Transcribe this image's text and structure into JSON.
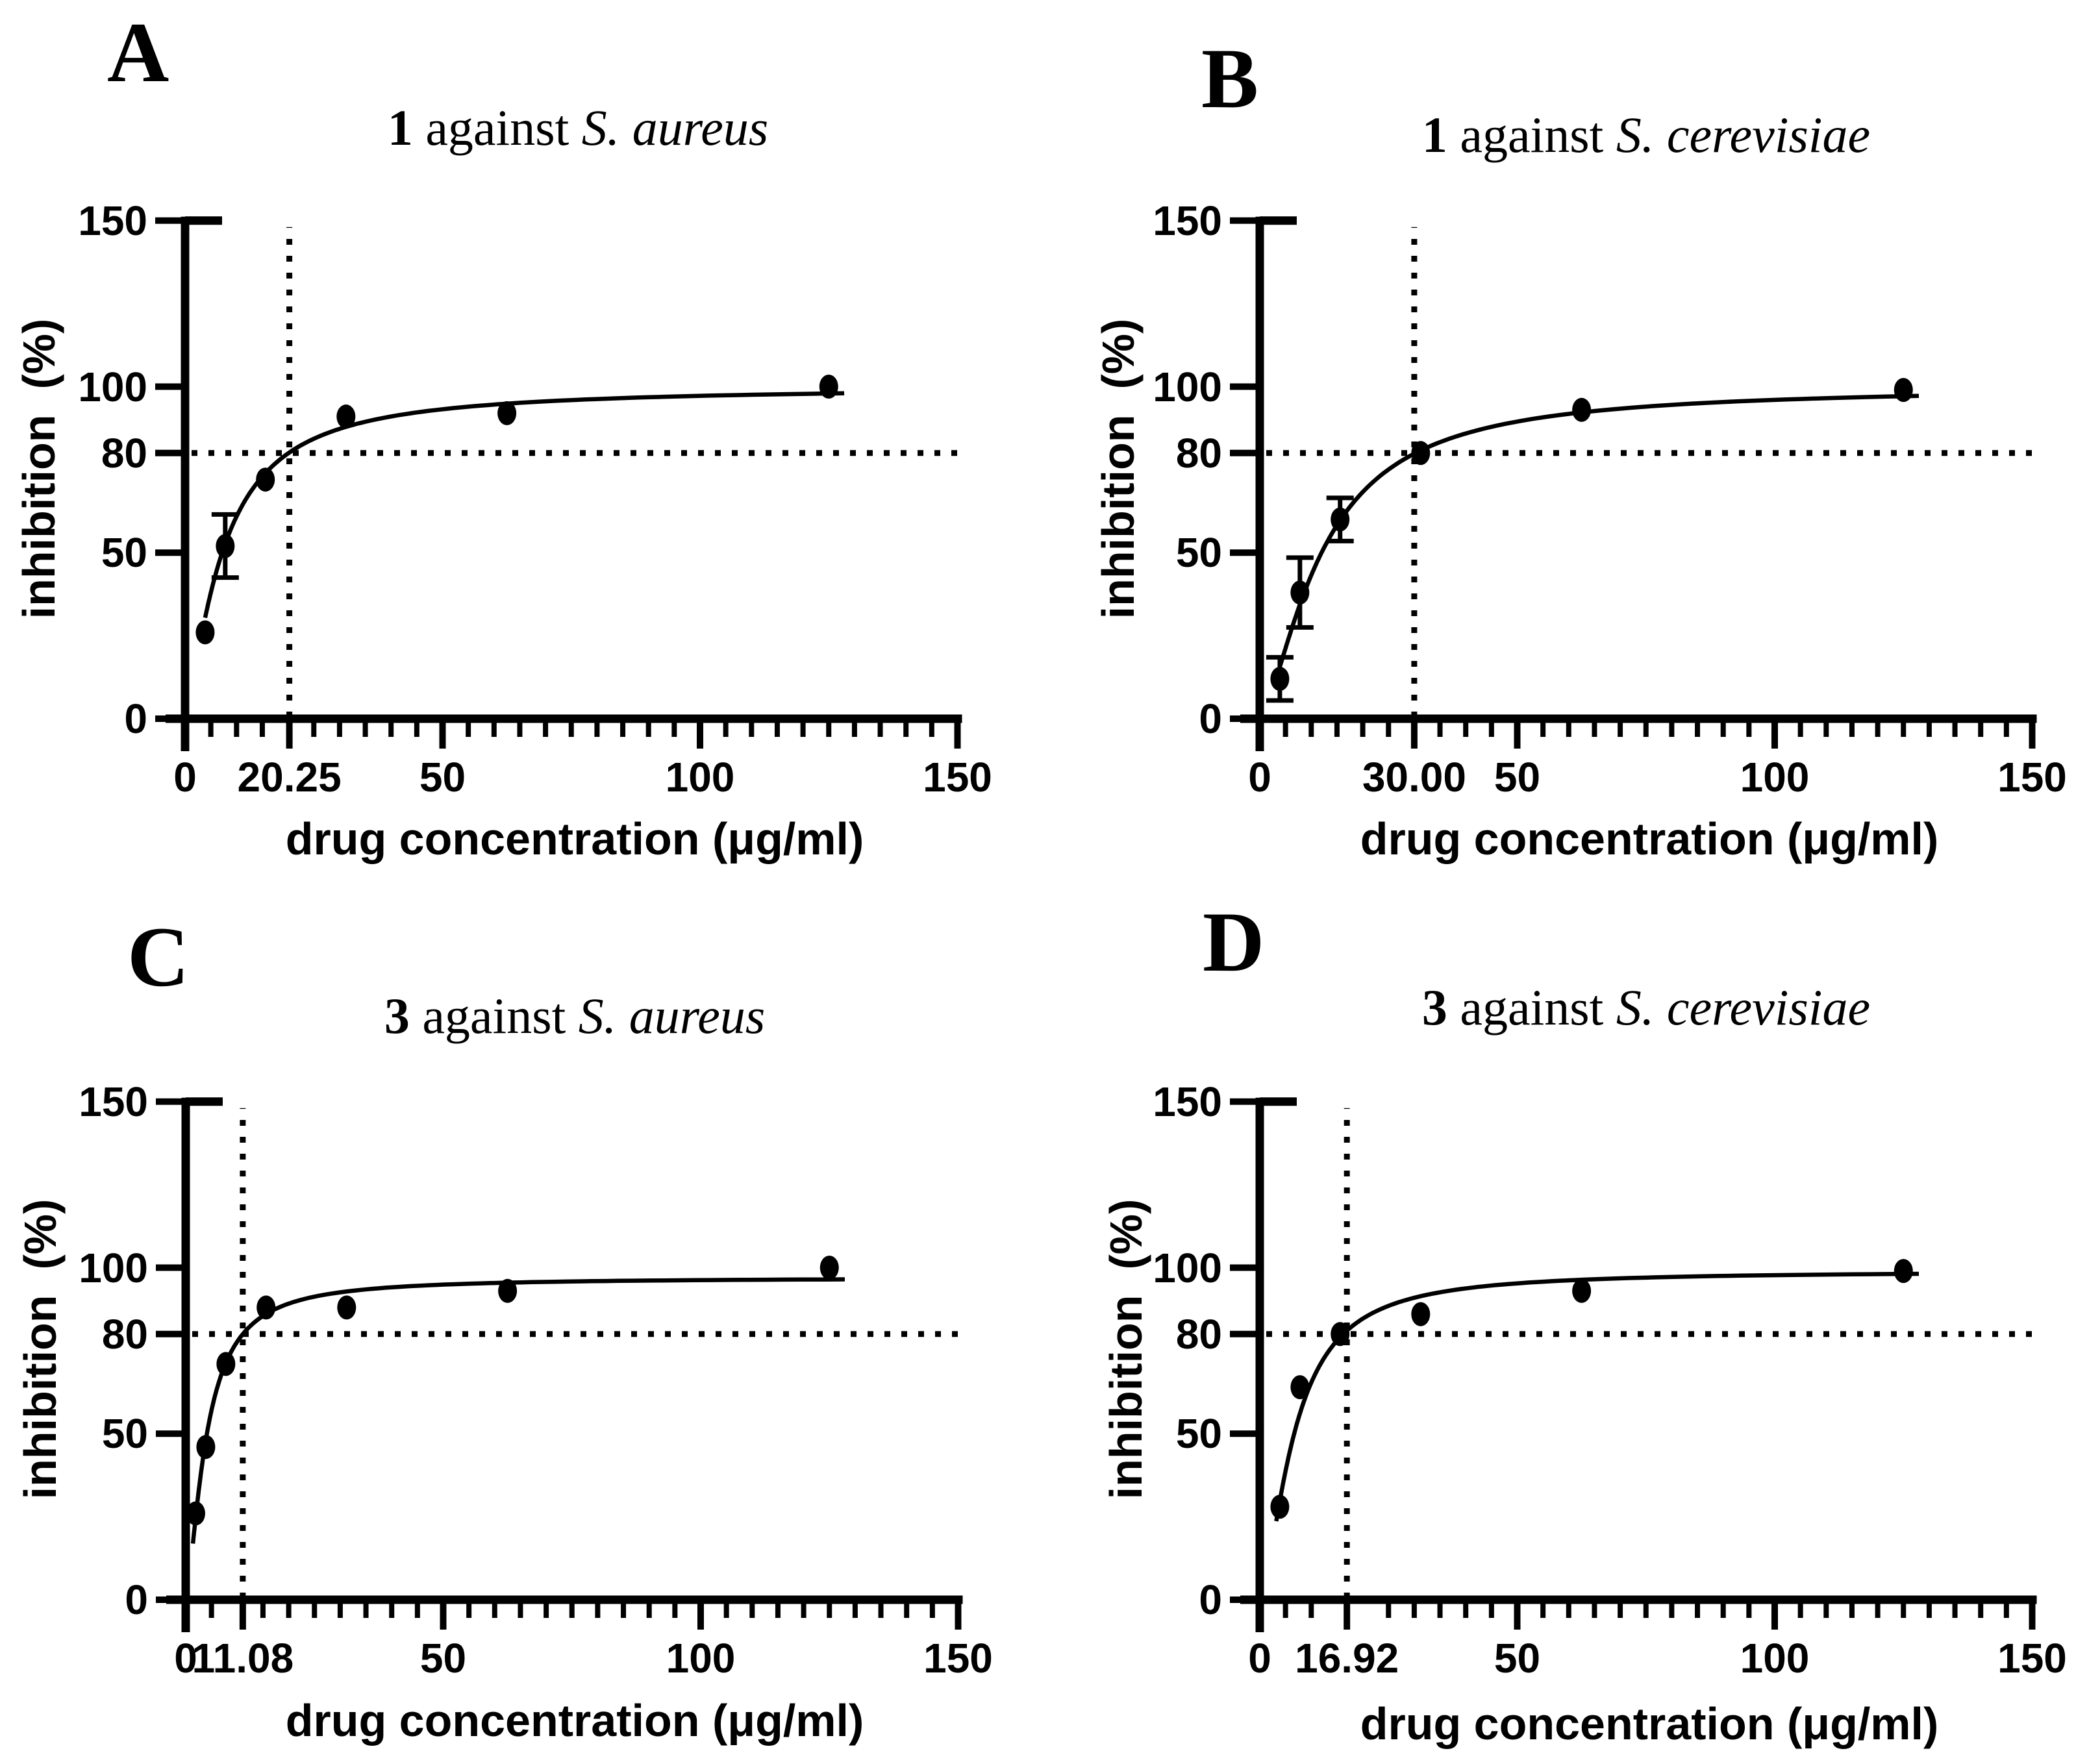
{
  "figure": {
    "background_color": "#ffffff",
    "ink_color": "#000000",
    "description_text": "dose-response inhibition curves"
  },
  "chart_data": [
    {
      "type": "scatter",
      "panel_letter": "A",
      "title_parts": {
        "compound": "1",
        "connector": " against ",
        "species": "S. aureus"
      },
      "xlabel": "drug concentration (μg/ml)",
      "ylabel": "inhibition  (%)",
      "xlim": [
        0,
        150
      ],
      "ylim": [
        0,
        150
      ],
      "grid": "off",
      "legend": "none",
      "y_ticks": [
        0,
        50,
        80,
        100,
        150
      ],
      "y_tick_labels": [
        "0",
        "50",
        "80",
        "100",
        "150"
      ],
      "x_major_ticks": [
        0,
        50,
        100,
        150
      ],
      "x_custom_tick": {
        "value": 20.25,
        "label": "20.25"
      },
      "x_minor_step": 5,
      "x_tick_labels": [
        "0",
        "20.25",
        "50",
        "100",
        "150"
      ],
      "reference_lines": {
        "horizontal_y": 80,
        "vertical_x": 20.25,
        "style": "dotted"
      },
      "points": [
        {
          "x": 3.9,
          "y": 26
        },
        {
          "x": 7.8,
          "y": 52,
          "err": 9.5
        },
        {
          "x": 15.6,
          "y": 72
        },
        {
          "x": 31.25,
          "y": 91
        },
        {
          "x": 62.5,
          "y": 92
        },
        {
          "x": 125,
          "y": 100
        }
      ],
      "fit_curve": {
        "model": "hill",
        "vmax": 100,
        "k": 7.2,
        "n": 1.35,
        "x_start": 3.9,
        "x_end": 128
      },
      "marker": "filled-circle",
      "color": "#000000"
    },
    {
      "type": "scatter",
      "panel_letter": "B",
      "title_parts": {
        "compound": "1",
        "connector": " against ",
        "species": "S. cerevisiae"
      },
      "xlabel": "drug concentration (μg/ml)",
      "ylabel": "inhibition  (%)",
      "xlim": [
        0,
        150
      ],
      "ylim": [
        0,
        150
      ],
      "grid": "off",
      "legend": "none",
      "y_ticks": [
        0,
        50,
        80,
        100,
        150
      ],
      "y_tick_labels": [
        "0",
        "50",
        "80",
        "100",
        "150"
      ],
      "x_major_ticks": [
        0,
        50,
        100,
        150
      ],
      "x_custom_tick": {
        "value": 30,
        "label": "30.00"
      },
      "x_minor_step": 5,
      "x_tick_labels": [
        "0",
        "30.00",
        "50",
        "100",
        "150"
      ],
      "reference_lines": {
        "horizontal_y": 80,
        "vertical_x": 30,
        "style": "dotted"
      },
      "points": [
        {
          "x": 3.9,
          "y": 12,
          "err": 6.5
        },
        {
          "x": 7.8,
          "y": 38,
          "err": 10.5
        },
        {
          "x": 15.6,
          "y": 60,
          "err": 6.5
        },
        {
          "x": 31.25,
          "y": 80
        },
        {
          "x": 62.5,
          "y": 93
        },
        {
          "x": 125,
          "y": 99
        }
      ],
      "fit_curve": {
        "model": "hill",
        "vmax": 100,
        "k": 12,
        "n": 1.5,
        "x_start": 3.9,
        "x_end": 128
      },
      "marker": "filled-circle",
      "color": "#000000"
    },
    {
      "type": "scatter",
      "panel_letter": "C",
      "title_parts": {
        "compound": "3",
        "connector": " against ",
        "species": "S. aureus"
      },
      "xlabel": "drug concentration (μg/ml)",
      "ylabel": "inhibition  (%)",
      "xlim": [
        0,
        150
      ],
      "ylim": [
        0,
        150
      ],
      "grid": "off",
      "legend": "none",
      "y_ticks": [
        0,
        50,
        80,
        100,
        150
      ],
      "y_tick_labels": [
        "0",
        "50",
        "80",
        "100",
        "150"
      ],
      "x_major_ticks": [
        0,
        50,
        100,
        150
      ],
      "x_custom_tick": {
        "value": 11.08,
        "label": "11.08"
      },
      "x_minor_step": 5,
      "x_tick_labels": [
        "0",
        "11.08",
        "50",
        "100",
        "150"
      ],
      "reference_lines": {
        "horizontal_y": 80,
        "vertical_x": 11.08,
        "style": "dotted"
      },
      "points": [
        {
          "x": 1.95,
          "y": 26
        },
        {
          "x": 3.9,
          "y": 46
        },
        {
          "x": 7.8,
          "y": 71
        },
        {
          "x": 15.6,
          "y": 88
        },
        {
          "x": 31.25,
          "y": 88
        },
        {
          "x": 62.5,
          "y": 93
        },
        {
          "x": 125,
          "y": 100
        }
      ],
      "fit_curve": {
        "model": "hill",
        "vmax": 97,
        "k": 3.95,
        "n": 1.5,
        "x_start": 1.4,
        "x_end": 128
      },
      "marker": "filled-circle",
      "color": "#000000"
    },
    {
      "type": "scatter",
      "panel_letter": "D",
      "title_parts": {
        "compound": "3",
        "connector": " against ",
        "species": "S. cerevisiae"
      },
      "xlabel": "drug concentration (μg/ml)",
      "ylabel": "inhibition  (%)",
      "xlim": [
        0,
        150
      ],
      "ylim": [
        0,
        150
      ],
      "grid": "off",
      "legend": "none",
      "y_ticks": [
        0,
        50,
        80,
        100,
        150
      ],
      "y_tick_labels": [
        "0",
        "50",
        "80",
        "100",
        "150"
      ],
      "x_major_ticks": [
        0,
        50,
        100,
        150
      ],
      "x_custom_tick": {
        "value": 16.92,
        "label": "16.92"
      },
      "x_minor_step": 5,
      "x_tick_labels": [
        "0",
        "16.92",
        "50",
        "100",
        "150"
      ],
      "reference_lines": {
        "horizontal_y": 80,
        "vertical_x": 16.92,
        "style": "dotted"
      },
      "points": [
        {
          "x": 3.9,
          "y": 28
        },
        {
          "x": 7.8,
          "y": 64
        },
        {
          "x": 15.6,
          "y": 80
        },
        {
          "x": 31.25,
          "y": 86
        },
        {
          "x": 62.5,
          "y": 93
        },
        {
          "x": 125,
          "y": 99
        }
      ],
      "fit_curve": {
        "model": "hill",
        "vmax": 99,
        "k": 6.6,
        "n": 1.6,
        "x_start": 3.2,
        "x_end": 128
      },
      "marker": "filled-circle",
      "color": "#000000"
    }
  ]
}
